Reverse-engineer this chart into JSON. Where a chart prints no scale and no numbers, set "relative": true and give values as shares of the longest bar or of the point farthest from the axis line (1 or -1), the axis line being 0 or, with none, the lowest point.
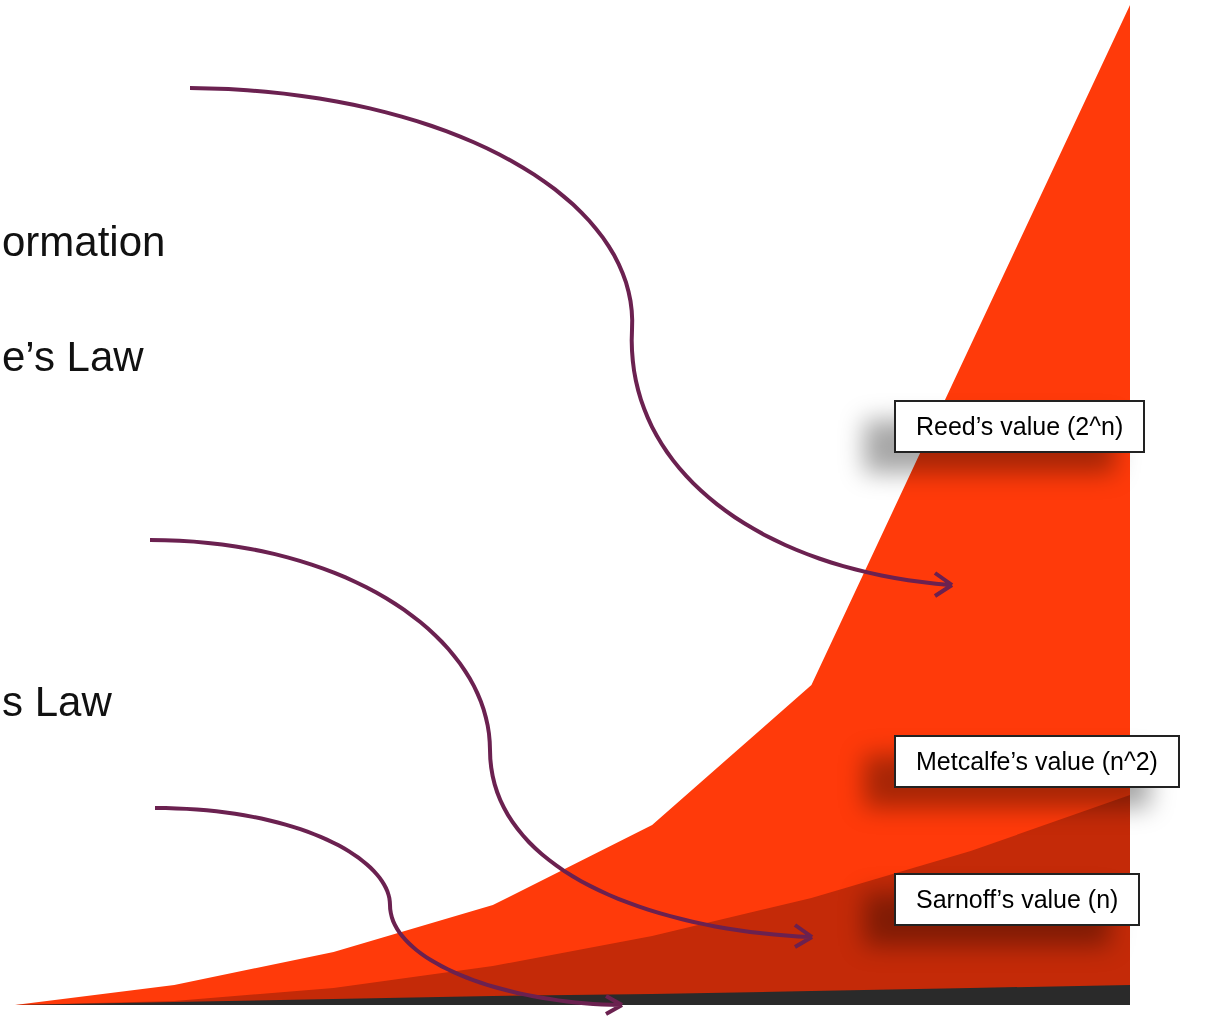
{
  "chart_data": {
    "type": "area",
    "relative": true,
    "categories": [
      null,
      null,
      null,
      null,
      null,
      null,
      null,
      null
    ],
    "annotations": [
      "ormation",
      "e’s Law",
      "s Law"
    ],
    "series": [
      {
        "name": "Reed’s value (2^n)",
        "color": "#ff3a0a",
        "values": [
          0,
          0.02,
          0.053,
          0.1,
          0.18,
          0.32,
          0.66,
          1
        ]
      },
      {
        "name": "Metcalfe’s value (n^2)",
        "color": "#c42a08",
        "values": [
          0,
          0.004,
          0.017,
          0.039,
          0.069,
          0.107,
          0.154,
          0.21
        ]
      },
      {
        "name": "Sarnoff’s value (n)",
        "color": "#2a2a2a",
        "values": [
          0,
          0.003,
          0.006,
          0.009,
          0.011,
          0.014,
          0.017,
          0.02
        ]
      }
    ]
  }
}
